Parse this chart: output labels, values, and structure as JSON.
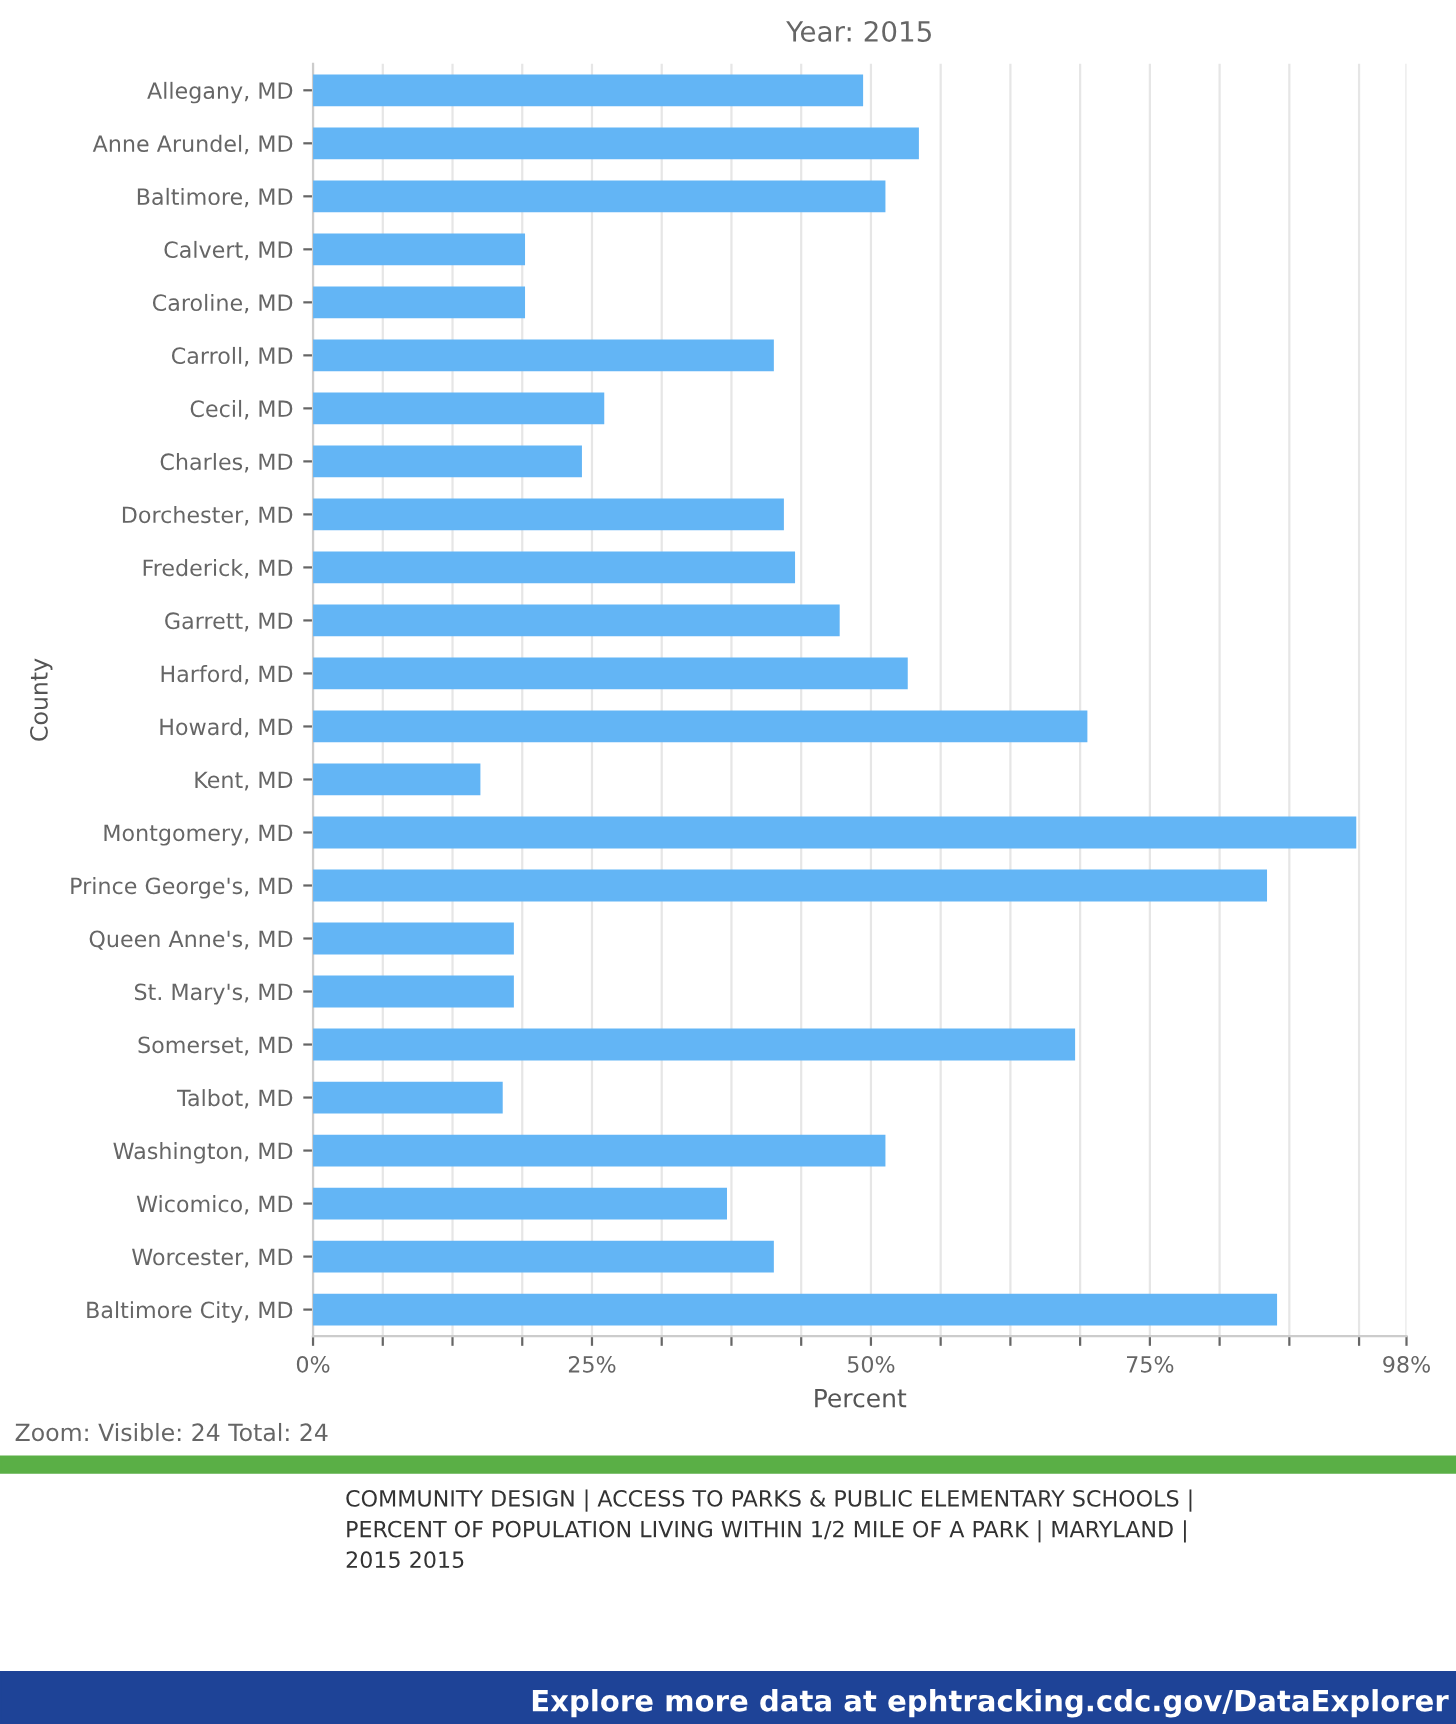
{
  "chart_data": {
    "type": "bar",
    "orientation": "horizontal",
    "title": "Year: 2015",
    "xlabel": "Percent",
    "ylabel": "County",
    "categories": [
      "Allegany, MD",
      "Anne Arundel, MD",
      "Baltimore, MD",
      "Calvert, MD",
      "Caroline, MD",
      "Carroll, MD",
      "Cecil, MD",
      "Charles, MD",
      "Dorchester, MD",
      "Frederick, MD",
      "Garrett, MD",
      "Harford, MD",
      "Howard, MD",
      "Kent, MD",
      "Montgomery, MD",
      "Prince George's, MD",
      "Queen Anne's, MD",
      "St. Mary's, MD",
      "Somerset, MD",
      "Talbot, MD",
      "Washington, MD",
      "Wicomico, MD",
      "Worcester, MD",
      "Baltimore City, MD"
    ],
    "values": [
      49.3,
      54.3,
      51.3,
      19,
      19,
      41.3,
      26.1,
      24.1,
      42.2,
      43.2,
      47.2,
      53.3,
      69.4,
      15,
      93.5,
      85.5,
      18,
      18,
      68.3,
      17,
      51.3,
      37.1,
      41.3,
      86.4
    ],
    "color": "#63b5f5",
    "xlim": [
      0,
      98
    ],
    "xticks": [
      {
        "value": 0,
        "label": "0%"
      },
      {
        "value": 6.25,
        "label": null
      },
      {
        "value": 12.5,
        "label": null
      },
      {
        "value": 18.75,
        "label": null
      },
      {
        "value": 25,
        "label": "25%"
      },
      {
        "value": 31.25,
        "label": null
      },
      {
        "value": 37.5,
        "label": null
      },
      {
        "value": 43.75,
        "label": null
      },
      {
        "value": 50,
        "label": "50%"
      },
      {
        "value": 56.25,
        "label": null
      },
      {
        "value": 62.5,
        "label": null
      },
      {
        "value": 68.75,
        "label": null
      },
      {
        "value": 75,
        "label": "75%"
      },
      {
        "value": 81.25,
        "label": null
      },
      {
        "value": 87.5,
        "label": null
      },
      {
        "value": 93.75,
        "label": null
      },
      {
        "value": 98,
        "label": "98%"
      }
    ],
    "grid": "x",
    "legend": false,
    "annotations": [
      "Zoom: Visible: 24 Total: 24",
      "COMMUNITY DESIGN | ACCESS TO PARKS & PUBLIC ELEMENTARY SCHOOLS |\nPERCENT OF POPULATION LIVING WITHIN 1/2 MILE OF A PARK | MARYLAND |\n2015 2015",
      "Explore more data at ephtracking.cdc.gov/DataExplorer"
    ]
  }
}
